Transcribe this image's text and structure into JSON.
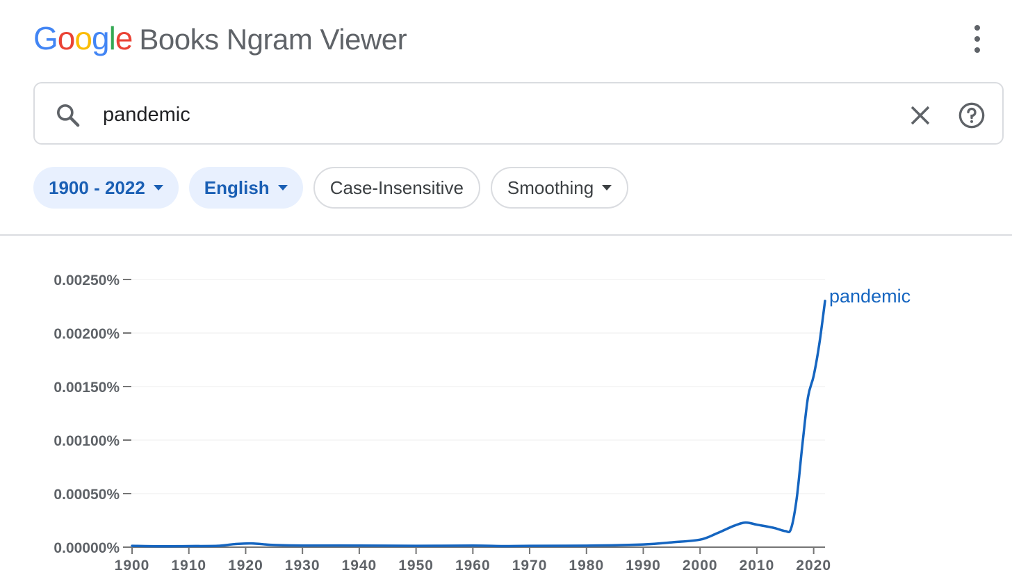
{
  "header": {
    "logo_text": "Google",
    "logo_letters": [
      {
        "char": "G",
        "color": "#4285F4"
      },
      {
        "char": "o",
        "color": "#EA4335"
      },
      {
        "char": "o",
        "color": "#FBBC05"
      },
      {
        "char": "g",
        "color": "#4285F4"
      },
      {
        "char": "l",
        "color": "#34A853"
      },
      {
        "char": "e",
        "color": "#EA4335"
      }
    ],
    "product_name": "Books Ngram Viewer",
    "menu_icon": "more-vert-icon"
  },
  "search": {
    "icon": "search-icon",
    "value": "pandemic",
    "clear_icon": "close-icon",
    "help_icon": "help-icon"
  },
  "filters": {
    "year_range": "1900 - 2022",
    "corpus": "English",
    "case": "Case-Insensitive",
    "smoothing": "Smoothing"
  },
  "colors": {
    "accent": "#1a5fb4",
    "line": "#1565c0",
    "chip_selected_bg": "#e8f0fe",
    "border": "#dadce0",
    "icon_gray": "#5f6368"
  },
  "chart_data": {
    "type": "line",
    "ylim": [
      0,
      0.0025
    ],
    "yticks": [
      0,
      0.0005,
      0.001,
      0.0015,
      0.002,
      0.0025
    ],
    "ytick_labels": [
      "0.00000%",
      "0.00050%",
      "0.00100%",
      "0.00150%",
      "0.00200%",
      "0.00250%"
    ],
    "xlim": [
      1900,
      2022
    ],
    "xticks": [
      1900,
      1910,
      1920,
      1930,
      1940,
      1950,
      1960,
      1970,
      1980,
      1990,
      2000,
      2010,
      2020
    ],
    "grid": true,
    "series": [
      {
        "name": "pandemic",
        "color": "#1565c0",
        "x": [
          1900,
          1905,
          1910,
          1915,
          1918,
          1921,
          1925,
          1930,
          1940,
          1950,
          1960,
          1965,
          1970,
          1980,
          1990,
          1995,
          2000,
          2003,
          2006,
          2008,
          2010,
          2013,
          2015,
          2016,
          2017,
          2018,
          2019,
          2020,
          2021,
          2022
        ],
        "y": [
          1.2e-05,
          8e-06,
          1e-05,
          1.2e-05,
          2.8e-05,
          3.5e-05,
          2e-05,
          1.5e-05,
          1.5e-05,
          1.2e-05,
          1.5e-05,
          1e-05,
          1.2e-05,
          1.4e-05,
          2.5e-05,
          4.5e-05,
          7e-05,
          0.00013,
          0.0002,
          0.00023,
          0.00021,
          0.00018,
          0.00015,
          0.00017,
          0.00045,
          0.00095,
          0.0014,
          0.0016,
          0.0019,
          0.0023
        ]
      }
    ]
  }
}
